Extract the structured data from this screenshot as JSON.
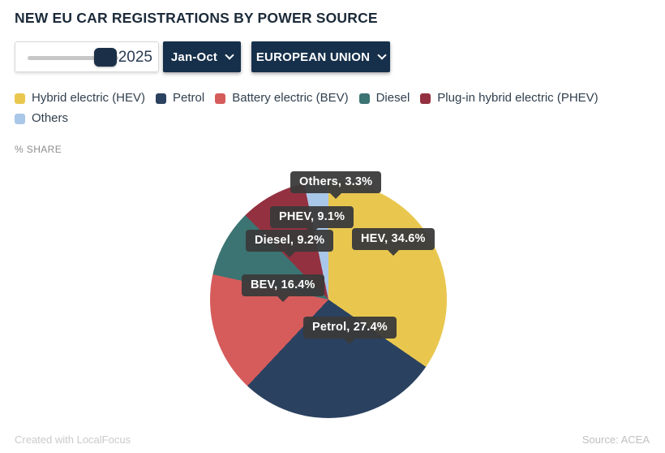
{
  "title": "NEW EU CAR REGISTRATIONS BY POWER SOURCE",
  "controls": {
    "year_slider": {
      "value": "2025"
    },
    "period_dropdown": {
      "selected": "Jan-Oct"
    },
    "region_dropdown": {
      "selected": "EUROPEAN UNION"
    }
  },
  "axis_note": "% SHARE",
  "chart_data": {
    "type": "pie",
    "title": "NEW EU CAR REGISTRATIONS BY POWER SOURCE",
    "unit": "% share",
    "start_angle_deg": 0,
    "direction": "clockwise",
    "legend_position": "top",
    "slices": [
      {
        "label": "Hybrid electric (HEV)",
        "short": "HEV",
        "value": 34.6,
        "color": "#e9c74f"
      },
      {
        "label": "Petrol",
        "short": "Petrol",
        "value": 27.4,
        "color": "#2b4160"
      },
      {
        "label": "Battery electric (BEV)",
        "short": "BEV",
        "value": 16.4,
        "color": "#d65c5c"
      },
      {
        "label": "Diesel",
        "short": "Diesel",
        "value": 9.2,
        "color": "#3b7472"
      },
      {
        "label": "Plug-in hybrid electric (PHEV)",
        "short": "PHEV",
        "value": 9.1,
        "color": "#933140"
      },
      {
        "label": "Others",
        "short": "Others",
        "value": 3.3,
        "color": "#a9c7e8"
      }
    ],
    "callouts": [
      {
        "id": "others",
        "text": "Others, 3.3%"
      },
      {
        "id": "phev",
        "text": "PHEV, 9.1%"
      },
      {
        "id": "diesel",
        "text": "Diesel, 9.2%"
      },
      {
        "id": "hev",
        "text": "HEV, 34.6%"
      },
      {
        "id": "bev",
        "text": "BEV, 16.4%"
      },
      {
        "id": "petrol",
        "text": "Petrol, 27.4%"
      }
    ]
  },
  "footer": {
    "left": "Created with LocalFocus",
    "right": "Source: ACEA"
  }
}
